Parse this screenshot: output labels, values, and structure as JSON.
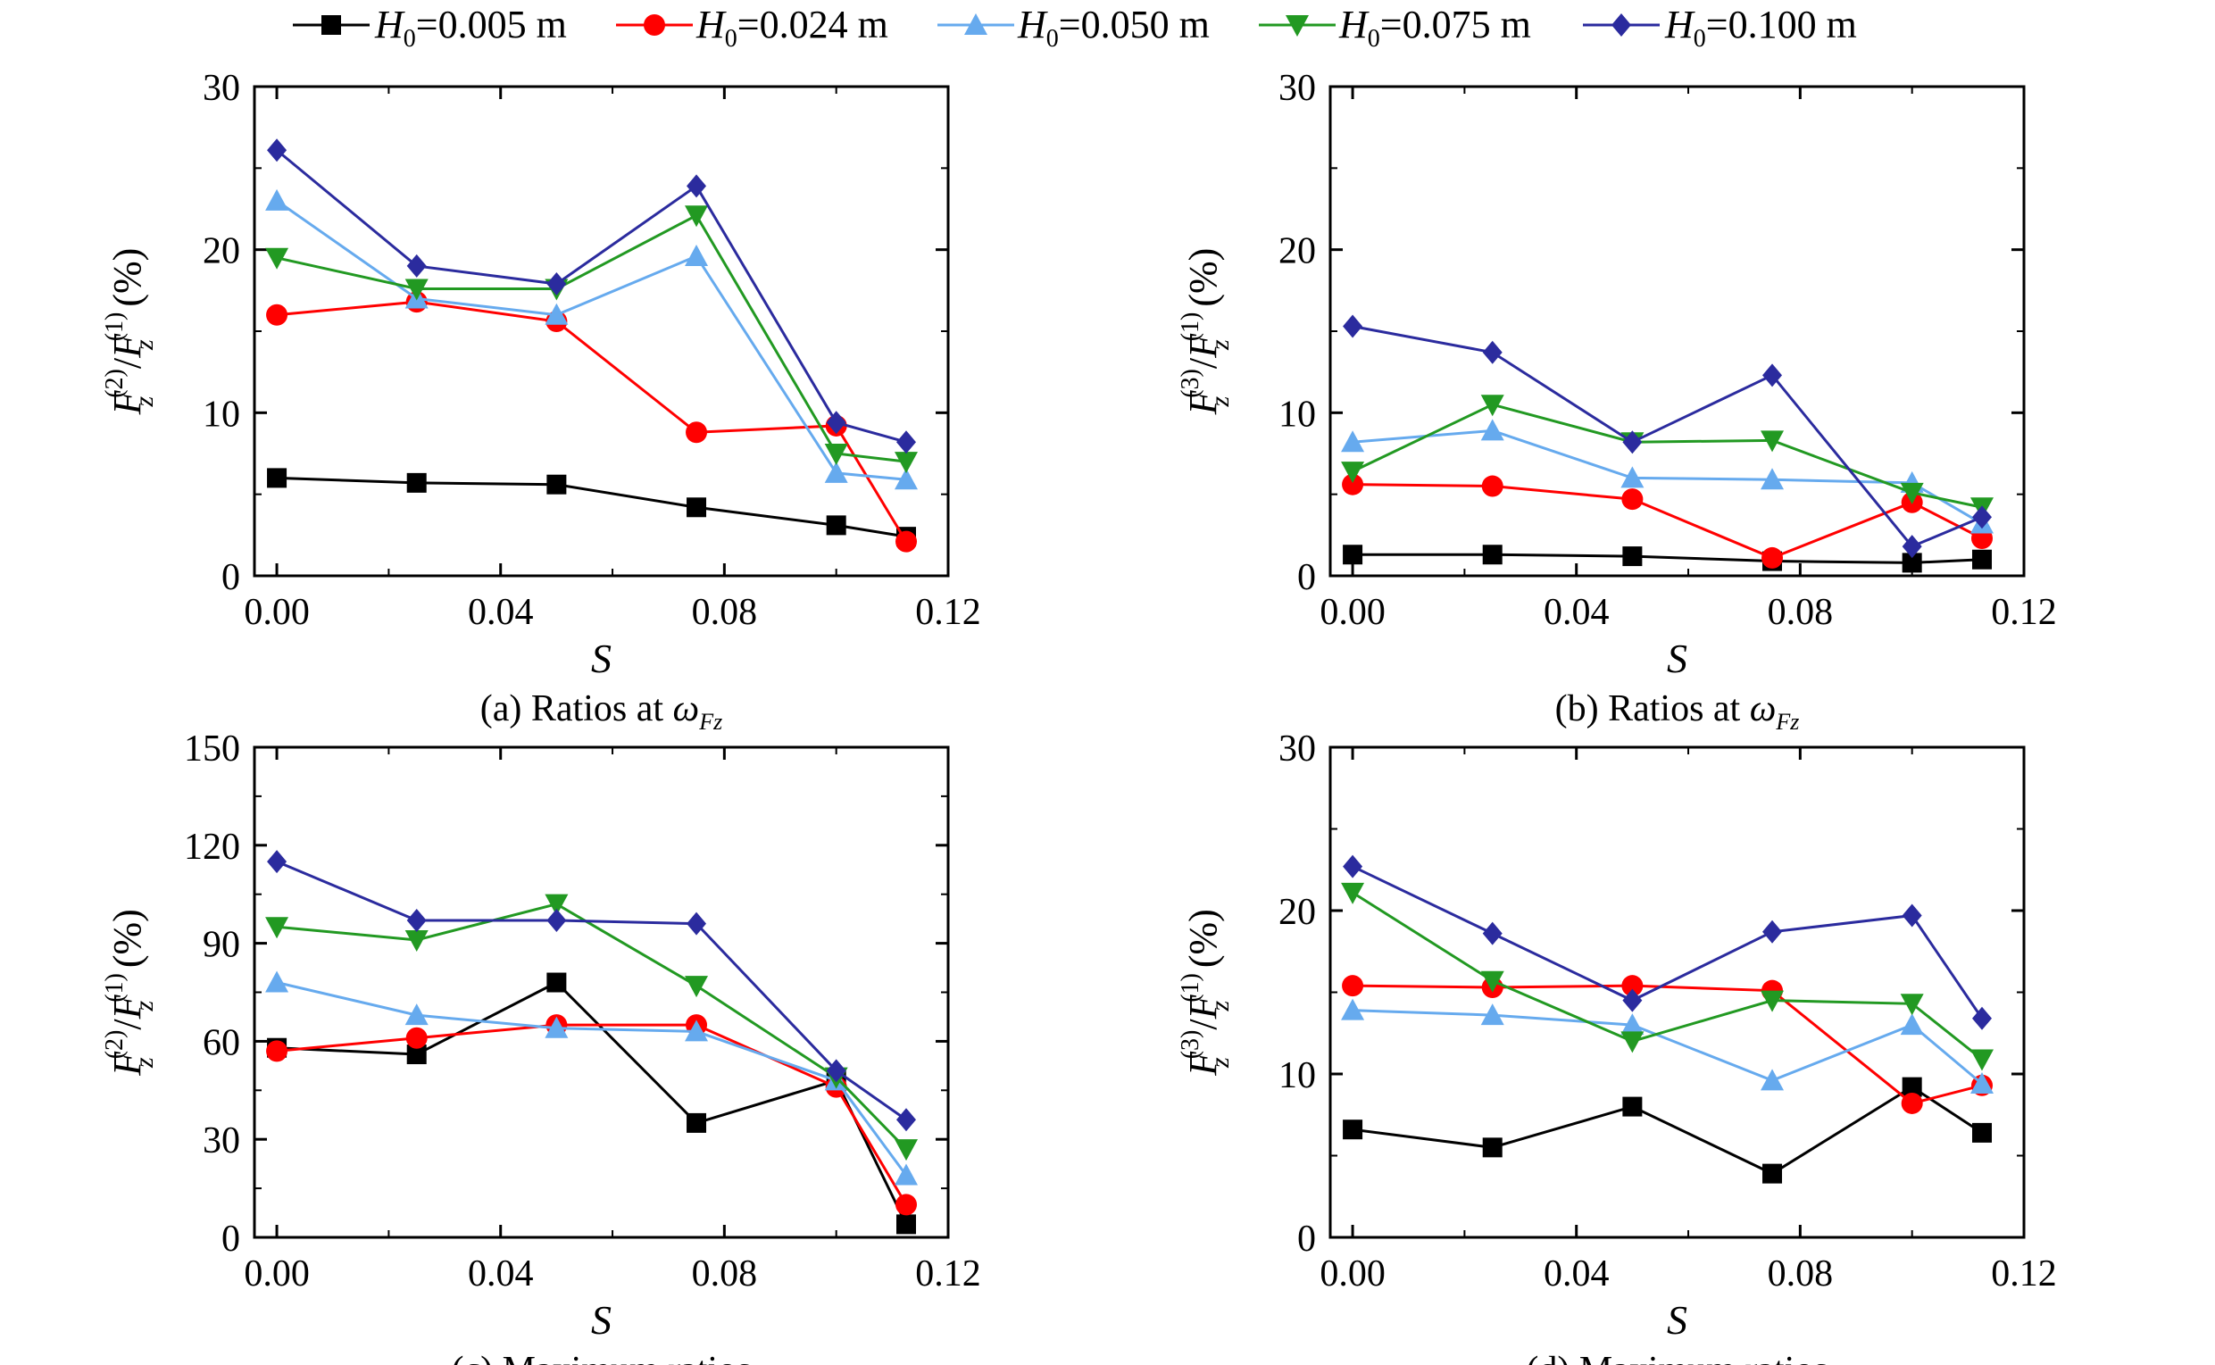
{
  "legend": [
    {
      "sym": "H",
      "sub": "0",
      "val": "=0.005 m",
      "color": "#000000",
      "marker": "square"
    },
    {
      "sym": "H",
      "sub": "0",
      "val": "=0.024 m",
      "color": "#ff0000",
      "marker": "circle"
    },
    {
      "sym": "H",
      "sub": "0",
      "val": "=0.050 m",
      "color": "#66aaee",
      "marker": "triangle-up"
    },
    {
      "sym": "H",
      "sub": "0",
      "val": "=0.075 m",
      "color": "#229922",
      "marker": "triangle-down"
    },
    {
      "sym": "H",
      "sub": "0",
      "val": "=0.100 m",
      "color": "#2b2b9e",
      "marker": "diamond"
    }
  ],
  "chart_data": [
    {
      "type": "line",
      "caption": {
        "prefix": "(a) Ratios at ",
        "sym": "ω",
        "sub": "Fz"
      },
      "xlabel": "S",
      "ylabel": {
        "order_num": "(2)",
        "order_den": "(1)"
      },
      "xlim": [
        -0.004,
        0.12
      ],
      "ylim": [
        0,
        30
      ],
      "xticks": [
        "0.00",
        "0.04",
        "0.08",
        "0.12"
      ],
      "xtick_values": [
        0.0,
        0.04,
        0.08,
        0.12
      ],
      "yticks": [
        "0",
        "10",
        "20",
        "30"
      ],
      "ytick_values": [
        0,
        10,
        20,
        30
      ],
      "x": [
        0.0,
        0.025,
        0.05,
        0.075,
        0.1,
        0.1125
      ],
      "series": [
        {
          "values": [
            6.0,
            5.7,
            5.6,
            4.2,
            3.1,
            2.4
          ]
        },
        {
          "values": [
            16.0,
            16.8,
            15.6,
            8.8,
            9.2,
            2.1
          ]
        },
        {
          "values": [
            23.0,
            17.0,
            16.0,
            19.6,
            6.3,
            5.9
          ]
        },
        {
          "values": [
            19.5,
            17.6,
            17.6,
            22.1,
            7.5,
            7.0
          ]
        },
        {
          "values": [
            26.1,
            19.0,
            17.9,
            23.9,
            9.4,
            8.2
          ]
        }
      ]
    },
    {
      "type": "line",
      "caption": {
        "prefix": "(b) Ratios at ",
        "sym": "ω",
        "sub": "Fz"
      },
      "xlabel": "S",
      "ylabel": {
        "order_num": "(3)",
        "order_den": "(1)"
      },
      "xlim": [
        -0.004,
        0.12
      ],
      "ylim": [
        0,
        30
      ],
      "xticks": [
        "0.00",
        "0.04",
        "0.08",
        "0.12"
      ],
      "xtick_values": [
        0.0,
        0.04,
        0.08,
        0.12
      ],
      "yticks": [
        "0",
        "10",
        "20",
        "30"
      ],
      "ytick_values": [
        0,
        10,
        20,
        30
      ],
      "x": [
        0.0,
        0.025,
        0.05,
        0.075,
        0.1,
        0.1125
      ],
      "series": [
        {
          "values": [
            1.3,
            1.3,
            1.2,
            0.9,
            0.8,
            1.0
          ]
        },
        {
          "values": [
            5.6,
            5.5,
            4.7,
            1.1,
            4.5,
            2.3
          ]
        },
        {
          "values": [
            8.2,
            8.9,
            6.0,
            5.9,
            5.7,
            3.2
          ]
        },
        {
          "values": [
            6.4,
            10.5,
            8.2,
            8.3,
            5.1,
            4.2
          ]
        },
        {
          "values": [
            15.3,
            13.7,
            8.2,
            12.3,
            1.8,
            3.6
          ]
        }
      ]
    },
    {
      "type": "line",
      "caption": {
        "prefix": "(c) Maximum ratios",
        "sym": "",
        "sub": ""
      },
      "xlabel": "S",
      "ylabel": {
        "order_num": "(2)",
        "order_den": "(1)"
      },
      "xlim": [
        -0.004,
        0.12
      ],
      "ylim": [
        0,
        150
      ],
      "xticks": [
        "0.00",
        "0.04",
        "0.08",
        "0.12"
      ],
      "xtick_values": [
        0.0,
        0.04,
        0.08,
        0.12
      ],
      "yticks": [
        "0",
        "30",
        "60",
        "90",
        "120",
        "150"
      ],
      "ytick_values": [
        0,
        30,
        60,
        90,
        120,
        150
      ],
      "x": [
        0.0,
        0.025,
        0.05,
        0.075,
        0.1,
        0.1125
      ],
      "series": [
        {
          "values": [
            58,
            56,
            78,
            35,
            48,
            4
          ]
        },
        {
          "values": [
            57,
            61,
            65,
            65,
            46,
            10
          ]
        },
        {
          "values": [
            78,
            68,
            64,
            63,
            48,
            19
          ]
        },
        {
          "values": [
            95,
            91,
            102,
            77,
            49,
            27
          ]
        },
        {
          "values": [
            115,
            97,
            97,
            96,
            51,
            36
          ]
        }
      ]
    },
    {
      "type": "line",
      "caption": {
        "prefix": "(d) Maximum ratios",
        "sym": "",
        "sub": ""
      },
      "xlabel": "S",
      "ylabel": {
        "order_num": "(3)",
        "order_den": "(1)"
      },
      "xlim": [
        -0.004,
        0.12
      ],
      "ylim": [
        0,
        30
      ],
      "xticks": [
        "0.00",
        "0.04",
        "0.08",
        "0.12"
      ],
      "xtick_values": [
        0.0,
        0.04,
        0.08,
        0.12
      ],
      "yticks": [
        "0",
        "10",
        "20",
        "30"
      ],
      "ytick_values": [
        0,
        10,
        20,
        30
      ],
      "x": [
        0.0,
        0.025,
        0.05,
        0.075,
        0.1,
        0.1125
      ],
      "series": [
        {
          "values": [
            6.6,
            5.5,
            8.0,
            3.9,
            9.2,
            6.4
          ]
        },
        {
          "values": [
            15.4,
            15.3,
            15.4,
            15.1,
            8.2,
            9.3
          ]
        },
        {
          "values": [
            13.9,
            13.6,
            13.0,
            9.6,
            13.0,
            9.4
          ]
        },
        {
          "values": [
            21.1,
            15.7,
            12.0,
            14.5,
            14.3,
            10.9
          ]
        },
        {
          "values": [
            22.7,
            18.6,
            14.5,
            18.7,
            19.7,
            13.4
          ]
        }
      ]
    }
  ]
}
